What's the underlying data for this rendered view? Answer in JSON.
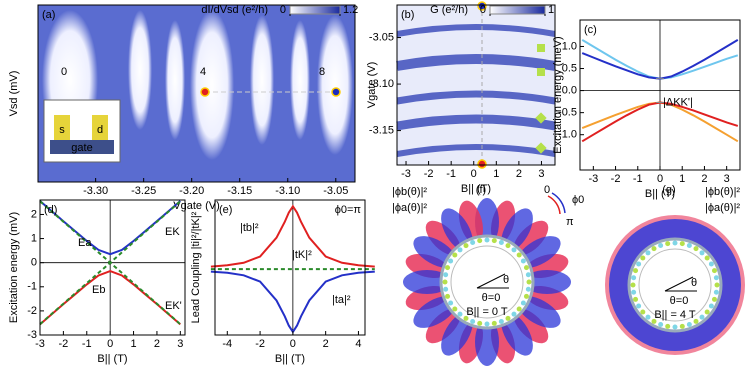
{
  "chart_data": [
    {
      "type": "heatmap",
      "panel": "(a)",
      "xlabel": "Vgate (V)",
      "ylabel": "Vsd (mV)",
      "colorbar_label": "dI/dVsd (e²/h)",
      "cticks": [
        0,
        1.2
      ],
      "colors": [
        "#ffffff",
        "#1a2a9e"
      ],
      "xlim": [
        -3.36,
        -3.03
      ],
      "xticks": [
        {
          "value": -3.3,
          "label": "-3.30"
        },
        -3.25,
        {
          "value": -3.2,
          "label": "-3.20"
        },
        -3.15,
        {
          "value": -3.1,
          "label": "-3.10"
        },
        -3.05
      ],
      "annotations": [
        "0",
        "4",
        "8",
        "s",
        "d",
        "gate"
      ]
    },
    {
      "type": "heatmap",
      "panel": "(b)",
      "xlabel": "B|| (T)",
      "ylabel": "Vgate (V)",
      "colorbar_label": "G (e²/h)",
      "cticks": [
        0,
        1
      ],
      "colors": [
        "#ffffff",
        "#1a2a9e"
      ],
      "xlim": [
        -3.4,
        3.6
      ],
      "xticks": [
        -3,
        -2,
        -1,
        0,
        1,
        2,
        3
      ],
      "ylim": [
        -3.187,
        -3.015
      ],
      "yticks": [
        -3.05,
        {
          "value": -3.1,
          "label": "-3.10"
        },
        -3.15
      ]
    },
    {
      "type": "line",
      "panel": "(c)",
      "xlabel": "B|| (T)",
      "ylabel": "Excitation energy (meV)",
      "xlim": [
        -3.6,
        3.6
      ],
      "xticks": [
        -3,
        -2,
        -1,
        0,
        1,
        2,
        3
      ],
      "ylim": [
        -1.8,
        1.6
      ],
      "yticks": [
        {
          "value": -1,
          "label": "-1.0"
        },
        -0.5,
        {
          "value": 0,
          "label": "0.0"
        },
        0.5,
        {
          "value": 1,
          "label": "1.0"
        }
      ],
      "annotations": [
        "|ΔKK'|"
      ],
      "x": [
        -3.5,
        -3,
        -2.5,
        -2,
        -1.5,
        -1,
        -0.5,
        0,
        0.5,
        1,
        1.5,
        2,
        2.5,
        3,
        3.5
      ],
      "series": [
        {
          "color": "#6ec6ee",
          "values": [
            1.15,
            1.0,
            0.85,
            0.7,
            0.56,
            0.43,
            0.32,
            0.27,
            0.3,
            0.37,
            0.45,
            0.54,
            0.63,
            0.72,
            0.8
          ]
        },
        {
          "color": "#2430c8",
          "values": [
            0.85,
            0.75,
            0.65,
            0.55,
            0.46,
            0.37,
            0.3,
            0.27,
            0.32,
            0.43,
            0.56,
            0.7,
            0.85,
            1.0,
            1.15
          ]
        },
        {
          "color": "#f5a030",
          "values": [
            -0.85,
            -0.75,
            -0.65,
            -0.55,
            -0.46,
            -0.37,
            -0.3,
            -0.27,
            -0.32,
            -0.43,
            -0.56,
            -0.7,
            -0.85,
            -1.0,
            -1.15
          ]
        },
        {
          "color": "#e02020",
          "values": [
            -1.15,
            -1.0,
            -0.85,
            -0.7,
            -0.56,
            -0.43,
            -0.32,
            -0.27,
            -0.3,
            -0.37,
            -0.45,
            -0.54,
            -0.63,
            -0.72,
            -0.8
          ]
        }
      ]
    },
    {
      "type": "line",
      "panel": "(d)",
      "xlabel": "B|| (T)",
      "ylabel": "Excitation energy (mV)",
      "xlim": [
        -3,
        3.2
      ],
      "xticks": [
        -3,
        -2,
        -1,
        0,
        1,
        2,
        3
      ],
      "ylim": [
        -3,
        2.6
      ],
      "yticks": [
        -3,
        -2,
        -1,
        0,
        1,
        2
      ],
      "x": [
        -3,
        -2.5,
        -2,
        -1.5,
        -1,
        -0.5,
        0,
        0.5,
        1,
        1.5,
        2,
        2.5,
        3
      ],
      "series": [
        {
          "name": "Ea",
          "color": "#2430c8",
          "values": [
            2.56,
            2.14,
            1.72,
            1.31,
            0.9,
            0.53,
            0.35,
            0.53,
            0.9,
            1.31,
            1.72,
            2.14,
            2.56
          ]
        },
        {
          "name": "Eb",
          "color": "#e02020",
          "values": [
            -2.56,
            -2.14,
            -1.72,
            -1.31,
            -0.9,
            -0.53,
            -0.35,
            -0.53,
            -0.9,
            -1.31,
            -1.72,
            -2.14,
            -2.56
          ]
        },
        {
          "name": "EK",
          "color": "#2a8a2a",
          "dash": true,
          "values": [
            -2.55,
            -2.125,
            -1.7,
            -1.275,
            -0.85,
            -0.425,
            0,
            0.425,
            0.85,
            1.275,
            1.7,
            2.125,
            2.55
          ]
        },
        {
          "name": "EK'",
          "color": "#2a8a2a",
          "dash": true,
          "values": [
            2.55,
            2.125,
            1.7,
            1.275,
            0.85,
            0.425,
            0,
            -0.425,
            -0.85,
            -1.275,
            -1.7,
            -2.125,
            -2.55
          ]
        }
      ]
    },
    {
      "type": "line",
      "panel": "(e)",
      "xlabel": "B|| (T)",
      "ylabel": "Lead Coupling |ti|²/|tK|²",
      "xlim": [
        -4.75,
        4.4
      ],
      "xticks": [
        -4,
        -2,
        0,
        2,
        4
      ],
      "ylim": [
        -0.05,
        2.1
      ],
      "annotations": [
        "ϕ0=π"
      ],
      "x": [
        -5,
        -4,
        -3,
        -2,
        -1,
        -0.5,
        -0.25,
        0,
        0.25,
        0.5,
        1,
        2,
        3,
        4,
        5
      ],
      "series": [
        {
          "name": "|tb|²",
          "color": "#e02020",
          "values": [
            1.04,
            1.06,
            1.1,
            1.2,
            1.5,
            1.75,
            1.9,
            2.0,
            1.9,
            1.75,
            1.5,
            1.2,
            1.1,
            1.06,
            1.04
          ]
        },
        {
          "name": "|tK|²",
          "color": "#2a8a2a",
          "dash": true,
          "values": [
            1,
            1,
            1,
            1,
            1,
            1,
            1,
            1,
            1,
            1,
            1,
            1,
            1,
            1,
            1
          ]
        },
        {
          "name": "|ta|²",
          "color": "#2430c8",
          "values": [
            0.96,
            0.94,
            0.9,
            0.8,
            0.5,
            0.25,
            0.1,
            0.0,
            0.1,
            0.25,
            0.5,
            0.8,
            0.9,
            0.94,
            0.96
          ]
        }
      ]
    }
  ],
  "diagrams": [
    {
      "panel": "(f)",
      "labels": [
        "|ϕb(θ)|²",
        "|ϕa(θ)|²"
      ],
      "angle": "θ",
      "zero": "θ=0",
      "field": "B|| = 0 T",
      "phase": [
        "0",
        "π",
        "ϕ0"
      ]
    },
    {
      "panel": "(g)",
      "labels": [
        "|ϕb(θ)|²",
        "|ϕa(θ)|²"
      ],
      "angle": "θ",
      "zero": "θ=0",
      "field": "B|| = 4 T"
    }
  ]
}
